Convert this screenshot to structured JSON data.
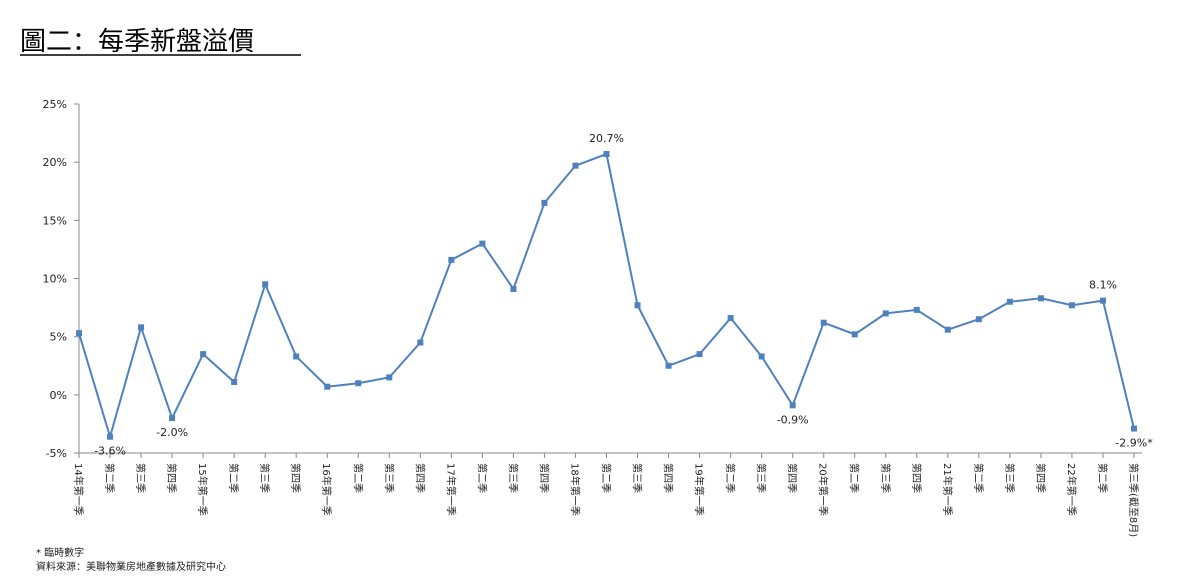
{
  "chart_data": {
    "type": "line",
    "title": "圖二：每季新盤溢價",
    "categories": [
      "14年第一季",
      "第二季",
      "第三季",
      "第四季",
      "15年第一季",
      "第二季",
      "第三季",
      "第四季",
      "16年第一季",
      "第二季",
      "第三季",
      "第四季",
      "17年第一季",
      "第二季",
      "第三季",
      "第四季",
      "18年第一季",
      "第二季",
      "第三季",
      "第四季",
      "19年第一季",
      "第二季",
      "第三季",
      "第四季",
      "20年第一季",
      "第二季",
      "第三季",
      "第四季",
      "21年第一季",
      "第二季",
      "第三季",
      "第四季",
      "22年第一季",
      "第二季",
      "第三季(截至8月)"
    ],
    "values": [
      5.3,
      -3.6,
      5.8,
      -2.0,
      3.5,
      1.1,
      9.5,
      3.3,
      0.7,
      1.0,
      1.5,
      4.5,
      11.6,
      13.0,
      9.1,
      16.5,
      19.7,
      20.7,
      7.7,
      2.5,
      3.5,
      6.6,
      3.3,
      -0.9,
      6.2,
      5.2,
      7.0,
      7.3,
      5.6,
      6.5,
      8.0,
      8.3,
      7.7,
      8.1,
      -2.9
    ],
    "value_labels": [
      null,
      "-3.6%",
      null,
      "-2.0%",
      null,
      null,
      null,
      null,
      null,
      null,
      null,
      null,
      null,
      null,
      null,
      null,
      null,
      "20.7%",
      null,
      null,
      null,
      null,
      null,
      "-0.9%",
      null,
      null,
      null,
      null,
      null,
      null,
      null,
      null,
      null,
      "8.1%",
      "-2.9%*"
    ],
    "color": "#4f81bd",
    "ylim": [
      -5,
      25
    ],
    "yticks": [
      {
        "value": -5,
        "label": "-5%"
      },
      {
        "value": 0,
        "label": "0%"
      },
      {
        "value": 5,
        "label": "5%"
      },
      {
        "value": 10,
        "label": "10%"
      },
      {
        "value": 15,
        "label": "15%"
      },
      {
        "value": 20,
        "label": "20%"
      },
      {
        "value": 25,
        "label": "25%"
      }
    ],
    "notes": [
      "* 臨時數字",
      "資料來源：美聯物業房地產數據及研究中心"
    ]
  }
}
